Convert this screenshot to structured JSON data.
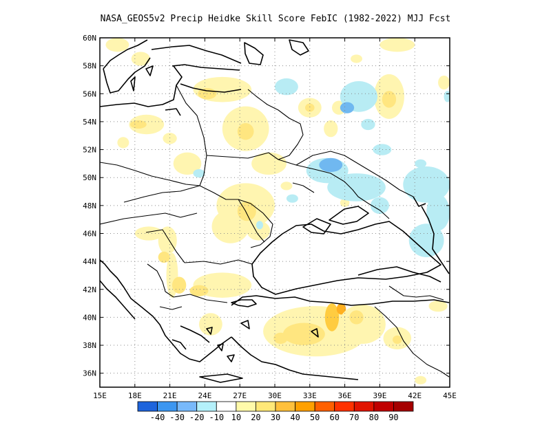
{
  "title": "NASA_GEOS5v2 Precip Heidke Skill Score FebIC (1982-2022) MJJ Fcst",
  "map": {
    "lon_range": [
      15,
      45
    ],
    "lat_range": [
      35,
      60
    ],
    "x_ticks": [
      {
        "value": 15,
        "label": "15E"
      },
      {
        "value": 18,
        "label": "18E"
      },
      {
        "value": 21,
        "label": "21E"
      },
      {
        "value": 24,
        "label": "24E"
      },
      {
        "value": 27,
        "label": "27E"
      },
      {
        "value": 30,
        "label": "30E"
      },
      {
        "value": 33,
        "label": "33E"
      },
      {
        "value": 36,
        "label": "36E"
      },
      {
        "value": 39,
        "label": "39E"
      },
      {
        "value": 42,
        "label": "42E"
      },
      {
        "value": 45,
        "label": "45E"
      }
    ],
    "y_ticks": [
      {
        "value": 36,
        "label": "36N"
      },
      {
        "value": 38,
        "label": "38N"
      },
      {
        "value": 40,
        "label": "40N"
      },
      {
        "value": 42,
        "label": "42N"
      },
      {
        "value": 44,
        "label": "44N"
      },
      {
        "value": 46,
        "label": "46N"
      },
      {
        "value": 48,
        "label": "48N"
      },
      {
        "value": 50,
        "label": "50N"
      },
      {
        "value": 52,
        "label": "52N"
      },
      {
        "value": 54,
        "label": "54N"
      },
      {
        "value": 56,
        "label": "56N"
      },
      {
        "value": 58,
        "label": "58N"
      },
      {
        "value": 60,
        "label": "60N"
      }
    ],
    "grid": true,
    "patches": [
      {
        "lon": 16.5,
        "lat": 59.5,
        "rx": 1.0,
        "ry": 0.5,
        "color": "#fff5b0"
      },
      {
        "lon": 18.5,
        "lat": 58.5,
        "rx": 0.8,
        "ry": 0.5,
        "color": "#fff5b0"
      },
      {
        "lon": 25.5,
        "lat": 56.3,
        "rx": 2.5,
        "ry": 0.9,
        "color": "#fff5b0"
      },
      {
        "lon": 24.2,
        "lat": 56.0,
        "rx": 0.8,
        "ry": 0.4,
        "color": "#ffe680"
      },
      {
        "lon": 19.0,
        "lat": 53.8,
        "rx": 1.5,
        "ry": 0.7,
        "color": "#fff5b0"
      },
      {
        "lon": 18.3,
        "lat": 53.8,
        "rx": 0.7,
        "ry": 0.3,
        "color": "#ffe680"
      },
      {
        "lon": 17.0,
        "lat": 52.5,
        "rx": 0.5,
        "ry": 0.4,
        "color": "#fff5b0"
      },
      {
        "lon": 21.0,
        "lat": 52.8,
        "rx": 0.6,
        "ry": 0.4,
        "color": "#fff5b0"
      },
      {
        "lon": 22.5,
        "lat": 51.0,
        "rx": 1.2,
        "ry": 0.8,
        "color": "#fff5b0"
      },
      {
        "lon": 27.5,
        "lat": 53.5,
        "rx": 2.0,
        "ry": 1.6,
        "color": "#fff5b0"
      },
      {
        "lon": 27.5,
        "lat": 53.3,
        "rx": 0.7,
        "ry": 0.6,
        "color": "#ffe680"
      },
      {
        "lon": 29.5,
        "lat": 51.0,
        "rx": 1.5,
        "ry": 0.8,
        "color": "#fff5b0"
      },
      {
        "lon": 33.0,
        "lat": 55.0,
        "rx": 1.0,
        "ry": 0.7,
        "color": "#fff5b0"
      },
      {
        "lon": 33.0,
        "lat": 55.0,
        "rx": 0.4,
        "ry": 0.3,
        "color": "#ffe680"
      },
      {
        "lon": 34.8,
        "lat": 53.5,
        "rx": 0.6,
        "ry": 0.6,
        "color": "#fff5b0"
      },
      {
        "lon": 35.5,
        "lat": 55.0,
        "rx": 0.6,
        "ry": 0.5,
        "color": "#fff5b0"
      },
      {
        "lon": 37.0,
        "lat": 58.5,
        "rx": 0.5,
        "ry": 0.3,
        "color": "#fff5b0"
      },
      {
        "lon": 39.8,
        "lat": 55.8,
        "rx": 1.3,
        "ry": 1.6,
        "color": "#fff5b0"
      },
      {
        "lon": 39.8,
        "lat": 55.6,
        "rx": 0.6,
        "ry": 0.6,
        "color": "#ffe680"
      },
      {
        "lon": 40.5,
        "lat": 59.5,
        "rx": 1.5,
        "ry": 0.5,
        "color": "#fff5b0"
      },
      {
        "lon": 44.5,
        "lat": 56.8,
        "rx": 0.5,
        "ry": 0.5,
        "color": "#fff5b0"
      },
      {
        "lon": 31.0,
        "lat": 49.4,
        "rx": 0.5,
        "ry": 0.3,
        "color": "#fff5b0"
      },
      {
        "lon": 27.5,
        "lat": 48.0,
        "rx": 2.5,
        "ry": 1.6,
        "color": "#fff5b0"
      },
      {
        "lon": 26.2,
        "lat": 46.5,
        "rx": 1.6,
        "ry": 1.2,
        "color": "#fff5b0"
      },
      {
        "lon": 27.6,
        "lat": 47.6,
        "rx": 0.8,
        "ry": 0.7,
        "color": "#ffe680"
      },
      {
        "lon": 28.6,
        "lat": 46.2,
        "rx": 1.0,
        "ry": 0.7,
        "color": "#fff5b0"
      },
      {
        "lon": 19.2,
        "lat": 46.0,
        "rx": 1.2,
        "ry": 0.5,
        "color": "#fff5b0"
      },
      {
        "lon": 20.8,
        "lat": 45.5,
        "rx": 0.8,
        "ry": 1.0,
        "color": "#fff5b0"
      },
      {
        "lon": 21.2,
        "lat": 43.0,
        "rx": 0.5,
        "ry": 1.6,
        "color": "#fff5b0"
      },
      {
        "lon": 20.5,
        "lat": 44.3,
        "rx": 0.5,
        "ry": 0.4,
        "color": "#ffe680"
      },
      {
        "lon": 21.8,
        "lat": 42.3,
        "rx": 0.6,
        "ry": 0.6,
        "color": "#ffe680"
      },
      {
        "lon": 25.5,
        "lat": 42.3,
        "rx": 2.5,
        "ry": 0.9,
        "color": "#fff5b0"
      },
      {
        "lon": 23.5,
        "lat": 41.9,
        "rx": 0.8,
        "ry": 0.4,
        "color": "#ffe680"
      },
      {
        "lon": 24.5,
        "lat": 39.5,
        "rx": 1.0,
        "ry": 0.8,
        "color": "#fff5b0"
      },
      {
        "lon": 33.5,
        "lat": 39.0,
        "rx": 4.5,
        "ry": 1.8,
        "color": "#fff5b0"
      },
      {
        "lon": 32.5,
        "lat": 38.8,
        "rx": 1.8,
        "ry": 0.8,
        "color": "#ffe680"
      },
      {
        "lon": 30.5,
        "lat": 38.5,
        "rx": 0.6,
        "ry": 0.4,
        "color": "#ffe680"
      },
      {
        "lon": 34.9,
        "lat": 40.0,
        "rx": 0.6,
        "ry": 1.0,
        "color": "#ffcc40"
      },
      {
        "lon": 35.7,
        "lat": 40.6,
        "rx": 0.4,
        "ry": 0.4,
        "color": "#ffb020"
      },
      {
        "lon": 37.5,
        "lat": 39.5,
        "rx": 2.0,
        "ry": 1.4,
        "color": "#fff5b0"
      },
      {
        "lon": 37.0,
        "lat": 40.0,
        "rx": 0.6,
        "ry": 0.5,
        "color": "#ffe680"
      },
      {
        "lon": 40.5,
        "lat": 38.5,
        "rx": 1.2,
        "ry": 0.8,
        "color": "#fff5b0"
      },
      {
        "lon": 40.5,
        "lat": 38.4,
        "rx": 0.4,
        "ry": 0.3,
        "color": "#ffe680"
      },
      {
        "lon": 44.0,
        "lat": 40.8,
        "rx": 0.8,
        "ry": 0.4,
        "color": "#fff5b0"
      },
      {
        "lon": 42.5,
        "lat": 35.5,
        "rx": 0.5,
        "ry": 0.3,
        "color": "#fff5b0"
      },
      {
        "lon": 44.2,
        "lat": 46.8,
        "rx": 0.4,
        "ry": 0.4,
        "color": "#fff5b0"
      },
      {
        "lon": 36.0,
        "lat": 48.2,
        "rx": 0.4,
        "ry": 0.3,
        "color": "#fff5b0"
      },
      {
        "lon": 31.0,
        "lat": 56.5,
        "rx": 1.0,
        "ry": 0.6,
        "color": "#b8ecf4"
      },
      {
        "lon": 37.2,
        "lat": 55.8,
        "rx": 1.6,
        "ry": 1.1,
        "color": "#b8ecf4"
      },
      {
        "lon": 36.2,
        "lat": 55.0,
        "rx": 0.6,
        "ry": 0.4,
        "color": "#70b8f0"
      },
      {
        "lon": 38.0,
        "lat": 53.8,
        "rx": 0.6,
        "ry": 0.4,
        "color": "#b8ecf4"
      },
      {
        "lon": 39.2,
        "lat": 52.0,
        "rx": 0.8,
        "ry": 0.4,
        "color": "#b8ecf4"
      },
      {
        "lon": 34.5,
        "lat": 50.5,
        "rx": 1.8,
        "ry": 0.9,
        "color": "#b8ecf4"
      },
      {
        "lon": 34.8,
        "lat": 50.9,
        "rx": 1.0,
        "ry": 0.5,
        "color": "#70b8f0"
      },
      {
        "lon": 37.0,
        "lat": 49.3,
        "rx": 2.5,
        "ry": 1.0,
        "color": "#b8ecf4"
      },
      {
        "lon": 39.0,
        "lat": 48.0,
        "rx": 0.8,
        "ry": 0.6,
        "color": "#b8ecf4"
      },
      {
        "lon": 31.5,
        "lat": 48.5,
        "rx": 0.5,
        "ry": 0.3,
        "color": "#b8ecf4"
      },
      {
        "lon": 43.0,
        "lat": 49.5,
        "rx": 2.0,
        "ry": 1.3,
        "color": "#b8ecf4"
      },
      {
        "lon": 44.0,
        "lat": 47.5,
        "rx": 1.0,
        "ry": 1.3,
        "color": "#b8ecf4"
      },
      {
        "lon": 43.0,
        "lat": 45.5,
        "rx": 1.5,
        "ry": 1.2,
        "color": "#b8ecf4"
      },
      {
        "lon": 44.8,
        "lat": 55.8,
        "rx": 0.3,
        "ry": 0.4,
        "color": "#b8ecf4"
      },
      {
        "lon": 42.5,
        "lat": 51.0,
        "rx": 0.5,
        "ry": 0.3,
        "color": "#b8ecf4"
      },
      {
        "lon": 23.5,
        "lat": 50.3,
        "rx": 0.5,
        "ry": 0.3,
        "color": "#b8ecf4"
      },
      {
        "lon": 28.7,
        "lat": 46.6,
        "rx": 0.3,
        "ry": 0.3,
        "color": "#b8ecf4"
      }
    ]
  },
  "colorbar": {
    "colors": [
      "#1e64dc",
      "#3c96f0",
      "#78b9fa",
      "#b4f0fa",
      "#ffffff",
      "#fffaaa",
      "#ffe878",
      "#ffc03c",
      "#ffa000",
      "#ff6000",
      "#ff3200",
      "#e11400",
      "#c00000",
      "#a50000"
    ],
    "labels": [
      "-40",
      "-30",
      "-20",
      "-10",
      "10",
      "20",
      "30",
      "40",
      "50",
      "60",
      "70",
      "80",
      "90"
    ]
  }
}
